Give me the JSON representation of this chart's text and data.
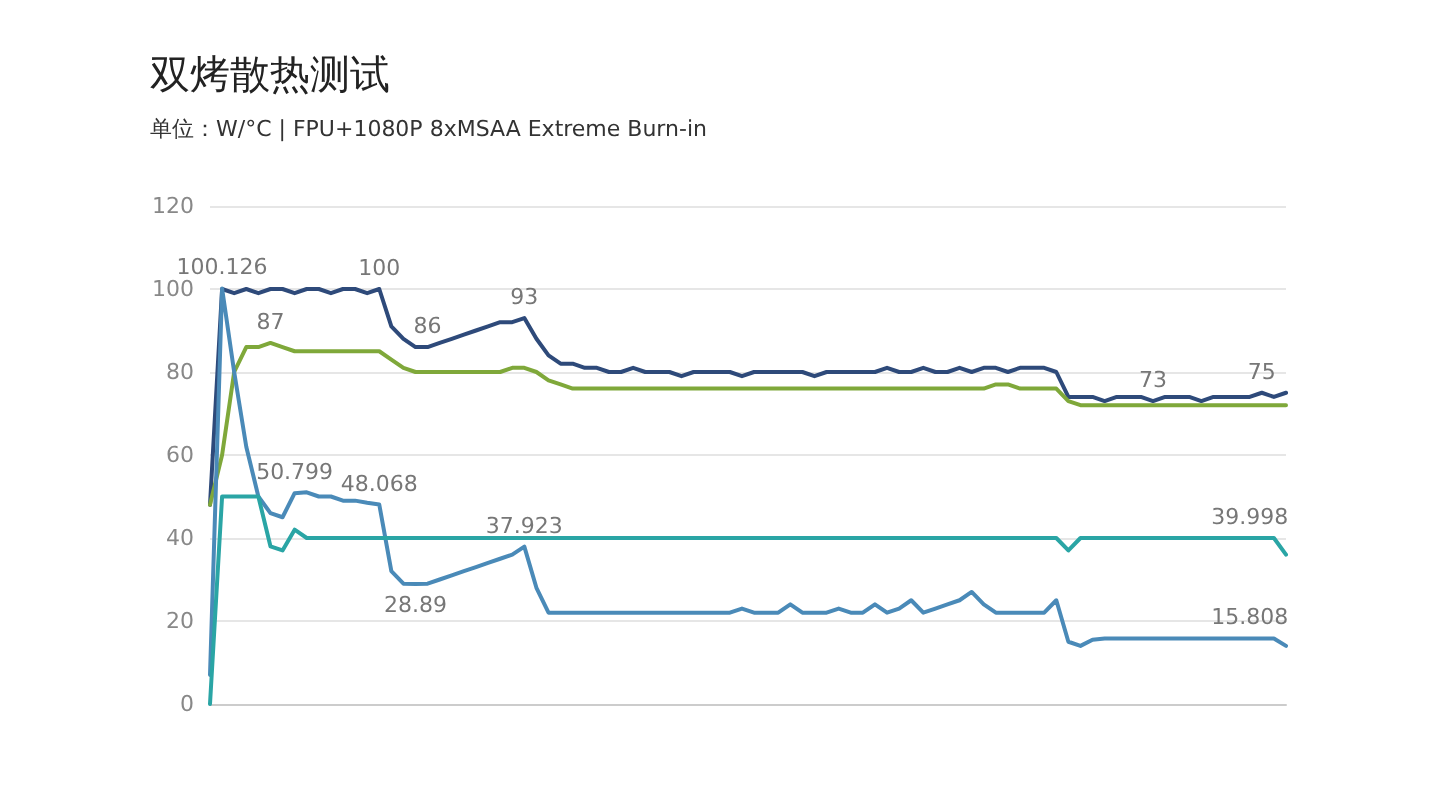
{
  "chart_data": {
    "type": "line",
    "title": "双烤散热测试",
    "subtitle": "单位：W/°C | FPU+1080P 8xMSAA Extreme Burn-in",
    "categories": [
      null,
      null,
      null,
      null,
      null,
      null,
      null,
      null,
      null,
      null,
      null,
      null,
      null,
      null,
      null,
      null,
      null,
      null,
      null,
      null,
      null,
      null,
      null,
      null,
      null,
      null,
      null,
      null,
      null,
      null,
      null,
      null,
      null,
      null,
      null,
      null,
      null,
      null,
      null,
      null,
      null,
      null,
      null,
      null,
      null,
      null,
      null,
      null,
      null,
      null,
      null,
      null,
      null,
      null,
      null,
      null,
      null,
      null,
      null,
      null,
      null,
      null,
      null,
      null,
      null,
      null,
      null,
      null,
      null,
      null,
      null,
      null,
      null,
      null,
      null,
      null,
      null,
      null,
      null,
      null,
      null,
      null,
      null,
      null,
      null,
      null,
      null,
      null,
      null,
      null
    ],
    "ylim": [
      0,
      120
    ],
    "yticks": [
      0,
      20,
      40,
      60,
      80,
      100,
      120
    ],
    "grid": "y",
    "tick_labels": "y",
    "marker": "none",
    "line_style": "solid",
    "series": [
      {
        "color": "#2e4a7a",
        "values": [
          48,
          100,
          99,
          100,
          99,
          100,
          100,
          99,
          100,
          100,
          99,
          100,
          100,
          99,
          100,
          91,
          88,
          86,
          86,
          87,
          88,
          89,
          90,
          91,
          92,
          92,
          93,
          88,
          84,
          82,
          82,
          81,
          81,
          80,
          80,
          81,
          80,
          80,
          80,
          79,
          80,
          80,
          80,
          80,
          79,
          80,
          80,
          80,
          80,
          80,
          79,
          80,
          80,
          80,
          80,
          80,
          81,
          80,
          80,
          81,
          80,
          80,
          81,
          80,
          81,
          81,
          80,
          81,
          81,
          81,
          80,
          74,
          74,
          74,
          73,
          74,
          74,
          74,
          73,
          74,
          74,
          74,
          73,
          74,
          74,
          74,
          74,
          75,
          74,
          75
        ],
        "value_labels": [
          null,
          null,
          null,
          null,
          null,
          null,
          null,
          null,
          null,
          null,
          null,
          null,
          null,
          null,
          "100",
          null,
          null,
          null,
          "86",
          null,
          null,
          null,
          null,
          null,
          null,
          null,
          "93",
          null,
          null,
          null,
          null,
          null,
          null,
          null,
          null,
          null,
          null,
          null,
          null,
          null,
          null,
          null,
          null,
          null,
          null,
          null,
          null,
          null,
          null,
          null,
          null,
          null,
          null,
          null,
          null,
          null,
          null,
          null,
          null,
          null,
          null,
          null,
          null,
          null,
          null,
          null,
          null,
          null,
          null,
          null,
          null,
          null,
          null,
          null,
          null,
          null,
          null,
          null,
          "73",
          null,
          null,
          null,
          null,
          null,
          null,
          null,
          null,
          "75",
          null,
          null
        ]
      },
      {
        "color": "#7fa83a",
        "values": [
          48,
          60,
          80,
          86,
          86,
          87,
          86,
          85,
          85,
          85,
          85,
          85,
          85,
          85,
          85,
          83,
          81,
          80,
          80,
          80,
          80,
          80,
          80,
          80,
          80,
          81,
          81,
          80,
          78,
          77,
          76,
          76,
          76,
          76,
          76,
          76,
          76,
          76,
          76,
          76,
          76,
          76,
          76,
          76,
          76,
          76,
          76,
          76,
          76,
          76,
          76,
          76,
          76,
          76,
          76,
          76,
          76,
          76,
          76,
          76,
          76,
          76,
          76,
          76,
          76,
          77,
          77,
          76,
          76,
          76,
          76,
          73,
          72,
          72,
          72,
          72,
          72,
          72,
          72,
          72,
          72,
          72,
          72,
          72,
          72,
          72,
          72,
          72,
          72,
          72
        ],
        "value_labels": [
          null,
          null,
          null,
          null,
          null,
          "87",
          null,
          null,
          null,
          null,
          null,
          null,
          null,
          null,
          null,
          null,
          null,
          null,
          null,
          null,
          null,
          null,
          null,
          null,
          null,
          null,
          null,
          null,
          null,
          null,
          null,
          null,
          null,
          null,
          null,
          null,
          null,
          null,
          null,
          null,
          null,
          null,
          null,
          null,
          null,
          null,
          null,
          null,
          null,
          null,
          null,
          null,
          null,
          null,
          null,
          null,
          null,
          null,
          null,
          null,
          null,
          null,
          null,
          null,
          null,
          null,
          null,
          null,
          null,
          null,
          null,
          null,
          null,
          null,
          null,
          null,
          null,
          null,
          null,
          null,
          null,
          null,
          null,
          null,
          null,
          null,
          null,
          null,
          null,
          null
        ]
      },
      {
        "color": "#4a8ab8",
        "values": [
          7,
          100.126,
          80,
          62,
          50,
          46,
          45,
          50.799,
          51,
          50,
          50,
          49,
          49,
          48.5,
          48.068,
          32,
          29,
          28.89,
          29,
          30,
          31,
          32,
          33,
          34,
          35,
          36,
          37.923,
          28,
          22,
          22,
          22,
          22,
          22,
          22,
          22,
          22,
          22,
          22,
          22,
          22,
          22,
          22,
          22,
          22,
          23,
          22,
          22,
          22,
          24,
          22,
          22,
          22,
          23,
          22,
          22,
          24,
          22,
          23,
          25,
          22,
          23,
          24,
          25,
          27,
          24,
          22,
          22,
          22,
          22,
          22,
          25,
          15,
          14,
          15.5,
          15.8,
          15.8,
          15.8,
          15.8,
          15.8,
          15.8,
          15.8,
          15.8,
          15.8,
          15.8,
          15.8,
          15.8,
          15.808,
          15.8,
          15.8,
          14
        ],
        "value_labels": [
          null,
          "100.126",
          null,
          null,
          null,
          null,
          null,
          "50.799",
          null,
          null,
          null,
          null,
          null,
          null,
          "48.068",
          null,
          null,
          "28.89",
          null,
          null,
          null,
          null,
          null,
          null,
          null,
          null,
          "37.923",
          null,
          null,
          null,
          null,
          null,
          null,
          null,
          null,
          null,
          null,
          null,
          null,
          null,
          null,
          null,
          null,
          null,
          null,
          null,
          null,
          null,
          null,
          null,
          null,
          null,
          null,
          null,
          null,
          null,
          null,
          null,
          null,
          null,
          null,
          null,
          null,
          null,
          null,
          null,
          null,
          null,
          null,
          null,
          null,
          null,
          null,
          null,
          null,
          null,
          null,
          null,
          null,
          null,
          null,
          null,
          null,
          null,
          null,
          null,
          "15.808",
          null,
          null,
          null
        ]
      },
      {
        "color": "#2aa5a5",
        "values": [
          0,
          50,
          50,
          50,
          50,
          38,
          37,
          42,
          40,
          40,
          40,
          40,
          40,
          40,
          40,
          40,
          40,
          40,
          40,
          40,
          40,
          40,
          40,
          40,
          40,
          40,
          40,
          40,
          40,
          40,
          40,
          40,
          40,
          40,
          40,
          40,
          40,
          40,
          40,
          40,
          40,
          40,
          40,
          40,
          40,
          40,
          40,
          40,
          40,
          40,
          40,
          40,
          40,
          40,
          40,
          40,
          40,
          40,
          40,
          40,
          40,
          40,
          40,
          40,
          40,
          40,
          40,
          40,
          40,
          40,
          40,
          37,
          40,
          40,
          40,
          40,
          40,
          40,
          40,
          40,
          40,
          40,
          40,
          40,
          40,
          40,
          39.998,
          40,
          40,
          36
        ],
        "value_labels": [
          null,
          null,
          null,
          null,
          null,
          null,
          null,
          null,
          null,
          null,
          null,
          null,
          null,
          null,
          null,
          null,
          null,
          null,
          null,
          null,
          null,
          null,
          null,
          null,
          null,
          null,
          null,
          null,
          null,
          null,
          null,
          null,
          null,
          null,
          null,
          null,
          null,
          null,
          null,
          null,
          null,
          null,
          null,
          null,
          null,
          null,
          null,
          null,
          null,
          null,
          null,
          null,
          null,
          null,
          null,
          null,
          null,
          null,
          null,
          null,
          null,
          null,
          null,
          null,
          null,
          null,
          null,
          null,
          null,
          null,
          null,
          null,
          null,
          null,
          null,
          null,
          null,
          null,
          null,
          null,
          null,
          null,
          null,
          null,
          null,
          null,
          "39.998",
          null,
          null,
          null
        ]
      }
    ]
  }
}
